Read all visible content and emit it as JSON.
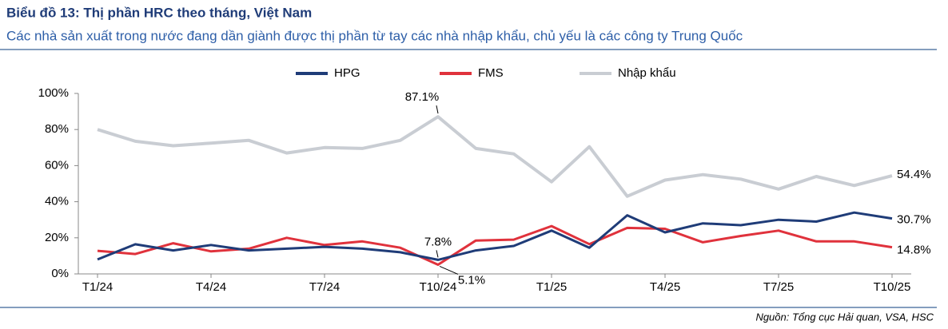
{
  "chart_data": {
    "type": "line",
    "title": "Biểu đồ 13: Thị phần HRC theo tháng, Việt Nam",
    "subtitle": "Các nhà sản xuất trong nước đang dần giành được thị phần từ tay các nhà nhập khẩu, chủ yếu là các công ty Trung Quốc",
    "source": "Nguồn: Tổng cục Hải quan, VSA, HSC",
    "categories": [
      "T1/24",
      null,
      null,
      "T4/24",
      null,
      null,
      "T7/24",
      null,
      null,
      "T10/24",
      null,
      null,
      "T1/25",
      null,
      null,
      "T4/25",
      null,
      null,
      "T7/25",
      null,
      null,
      "T10/25"
    ],
    "series": [
      {
        "name": "HPG",
        "color": "#1f3c78",
        "values": [
          8,
          16.4,
          13,
          16,
          13,
          14,
          15,
          14,
          12,
          7.8,
          13,
          15.5,
          24,
          14.5,
          32.5,
          23,
          28,
          27,
          30,
          29,
          34,
          30.7
        ],
        "value_labels": [
          null,
          null,
          null,
          null,
          null,
          null,
          null,
          null,
          null,
          "7.8%",
          null,
          null,
          null,
          null,
          null,
          null,
          null,
          null,
          null,
          null,
          null,
          "30.7%"
        ]
      },
      {
        "name": "FMS",
        "color": "#e0323c",
        "values": [
          12.8,
          11,
          17,
          12.5,
          14,
          20,
          16,
          18,
          14.5,
          5.1,
          18.5,
          19,
          26.5,
          16.5,
          25.5,
          25,
          17.5,
          21,
          24,
          18,
          18,
          14.8
        ],
        "value_labels": [
          null,
          null,
          null,
          null,
          null,
          null,
          null,
          null,
          null,
          "5.1%",
          null,
          null,
          null,
          null,
          null,
          null,
          null,
          null,
          null,
          null,
          null,
          "14.8%"
        ]
      },
      {
        "name": "Nhập khẩu",
        "color": "#c9cdd3",
        "values": [
          80,
          73.5,
          71,
          72.5,
          74,
          67,
          70,
          69.5,
          74,
          87.1,
          69.5,
          66.5,
          51,
          70.5,
          43,
          52,
          55,
          52.5,
          47,
          54,
          49,
          54.4
        ],
        "value_labels": [
          null,
          null,
          null,
          null,
          null,
          null,
          null,
          null,
          null,
          "87.1%",
          null,
          null,
          null,
          null,
          null,
          null,
          null,
          null,
          null,
          null,
          null,
          "54.4%"
        ]
      }
    ],
    "ylim": [
      0,
      100
    ],
    "yticks": [
      {
        "value": 0,
        "label": "0%"
      },
      {
        "value": 20,
        "label": "20%"
      },
      {
        "value": 40,
        "label": "40%"
      },
      {
        "value": 60,
        "label": "60%"
      },
      {
        "value": 80,
        "label": "80%"
      },
      {
        "value": 100,
        "label": "100%"
      }
    ],
    "legend": "top"
  }
}
